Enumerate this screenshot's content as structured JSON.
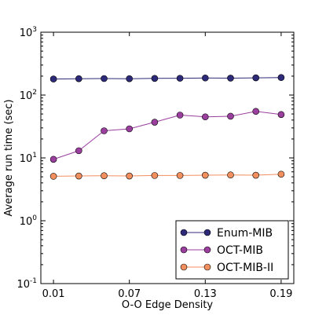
{
  "chart_data": {
    "type": "line",
    "title": "",
    "xlabel": "O-O Edge Density",
    "ylabel": "Average run time (sec)",
    "yscale": "log",
    "ylim": [
      0.1,
      1000
    ],
    "xlim": [
      0.0,
      0.2
    ],
    "x": [
      0.01,
      0.03,
      0.05,
      0.07,
      0.09,
      0.11,
      0.13,
      0.15,
      0.17,
      0.19
    ],
    "xticks": [
      0.01,
      0.07,
      0.13,
      0.19
    ],
    "xtick_labels": [
      "0.01",
      "0.07",
      "0.13",
      "0.19"
    ],
    "yticks": [
      {
        "value": 0.1,
        "base": "10",
        "exp": "-1"
      },
      {
        "value": 1,
        "base": "10",
        "exp": "0"
      },
      {
        "value": 10,
        "base": "10",
        "exp": "1"
      },
      {
        "value": 100,
        "base": "10",
        "exp": "2"
      },
      {
        "value": 1000,
        "base": "10",
        "exp": "3"
      }
    ],
    "grid": false,
    "legend_position": "bottom-right",
    "series": [
      {
        "name": "Enum-MIB",
        "color": "#2e2a7a",
        "values": [
          180,
          182,
          183,
          182,
          184,
          185,
          187,
          186,
          188,
          190
        ]
      },
      {
        "name": "OCT-MIB",
        "color": "#9b3f9e",
        "values": [
          9.5,
          13,
          27,
          29,
          37,
          48,
          45,
          46,
          55,
          49
        ]
      },
      {
        "name": "OCT-MIB-II",
        "color": "#f28f5e",
        "values": [
          5.1,
          5.15,
          5.2,
          5.15,
          5.25,
          5.25,
          5.3,
          5.35,
          5.3,
          5.5
        ]
      }
    ]
  }
}
